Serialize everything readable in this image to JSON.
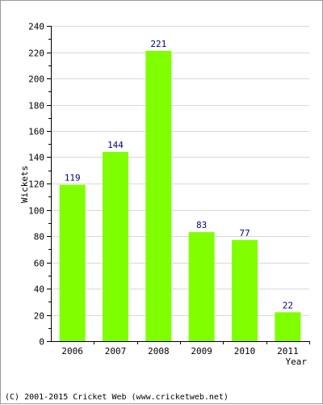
{
  "chart_data": {
    "type": "bar",
    "categories": [
      "2006",
      "2007",
      "2008",
      "2009",
      "2010",
      "2011"
    ],
    "values": [
      119,
      144,
      221,
      83,
      77,
      22
    ],
    "title": "",
    "xlabel": "Year",
    "ylabel": "Wickets",
    "ylim": [
      0,
      240
    ],
    "yticks": [
      0,
      20,
      40,
      60,
      80,
      100,
      120,
      140,
      160,
      180,
      200,
      220,
      240
    ],
    "grid": true,
    "legend": "none",
    "bar_color": "#80ff00",
    "label_color": "#000080"
  },
  "footer": {
    "copyright": "(C) 2001-2015 Cricket Web (www.cricketweb.net)"
  }
}
